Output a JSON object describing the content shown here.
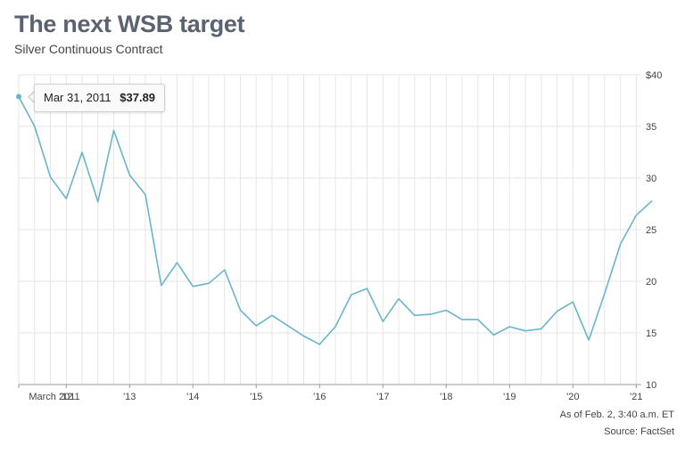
{
  "header": {
    "title": "The next WSB target",
    "subtitle": "Silver Continuous Contract"
  },
  "footer": {
    "as_of": "As of Feb. 2, 3:40 a.m. ET",
    "source": "Source: FactSet"
  },
  "tooltip": {
    "date": "Mar 31, 2011",
    "value": "$37.89"
  },
  "colors": {
    "line": "#6ab4cc",
    "grid": "#e6e6e6",
    "axis": "#9a9a9a"
  },
  "chart_data": {
    "type": "line",
    "title": "The next WSB target",
    "subtitle": "Silver Continuous Contract",
    "xlabel": "",
    "ylabel": "",
    "x_range": [
      2011.25,
      2021.08
    ],
    "ylim": [
      10,
      40
    ],
    "y_ticks": [
      10,
      15,
      20,
      25,
      30,
      35,
      40
    ],
    "y_tick_labels": [
      "10",
      "15",
      "20",
      "25",
      "30",
      "35",
      "$40"
    ],
    "x_ticks": [
      {
        "x": 2011.25,
        "label": "March 2011"
      },
      {
        "x": 2012.0,
        "label": "'12"
      },
      {
        "x": 2013.0,
        "label": "'13"
      },
      {
        "x": 2014.0,
        "label": "'14"
      },
      {
        "x": 2015.0,
        "label": "'15"
      },
      {
        "x": 2016.0,
        "label": "'16"
      },
      {
        "x": 2017.0,
        "label": "'17"
      },
      {
        "x": 2018.0,
        "label": "'18"
      },
      {
        "x": 2019.0,
        "label": "'19"
      },
      {
        "x": 2020.0,
        "label": "'20"
      },
      {
        "x": 2021.0,
        "label": "'21"
      }
    ],
    "grid": true,
    "series": [
      {
        "points": [
          [
            2011.25,
            37.89
          ],
          [
            2011.5,
            35.0
          ],
          [
            2011.75,
            30.1
          ],
          [
            2012.0,
            28.0
          ],
          [
            2012.25,
            32.5
          ],
          [
            2012.5,
            27.7
          ],
          [
            2012.75,
            34.6
          ],
          [
            2013.0,
            30.3
          ],
          [
            2013.25,
            28.4
          ],
          [
            2013.5,
            19.6
          ],
          [
            2013.75,
            21.8
          ],
          [
            2014.0,
            19.5
          ],
          [
            2014.25,
            19.8
          ],
          [
            2014.5,
            21.1
          ],
          [
            2014.75,
            17.2
          ],
          [
            2015.0,
            15.7
          ],
          [
            2015.25,
            16.7
          ],
          [
            2015.5,
            15.7
          ],
          [
            2015.75,
            14.7
          ],
          [
            2016.0,
            13.9
          ],
          [
            2016.25,
            15.6
          ],
          [
            2016.5,
            18.7
          ],
          [
            2016.75,
            19.3
          ],
          [
            2017.0,
            16.1
          ],
          [
            2017.25,
            18.3
          ],
          [
            2017.5,
            16.7
          ],
          [
            2017.75,
            16.8
          ],
          [
            2018.0,
            17.2
          ],
          [
            2018.25,
            16.3
          ],
          [
            2018.5,
            16.3
          ],
          [
            2018.75,
            14.8
          ],
          [
            2019.0,
            15.6
          ],
          [
            2019.25,
            15.2
          ],
          [
            2019.5,
            15.4
          ],
          [
            2019.75,
            17.1
          ],
          [
            2020.0,
            18.0
          ],
          [
            2020.25,
            14.3
          ],
          [
            2020.5,
            18.8
          ],
          [
            2020.75,
            23.6
          ],
          [
            2021.0,
            26.4
          ],
          [
            2021.25,
            27.8
          ]
        ]
      }
    ],
    "highlight_point": {
      "x": 2011.25,
      "y": 37.89
    }
  }
}
